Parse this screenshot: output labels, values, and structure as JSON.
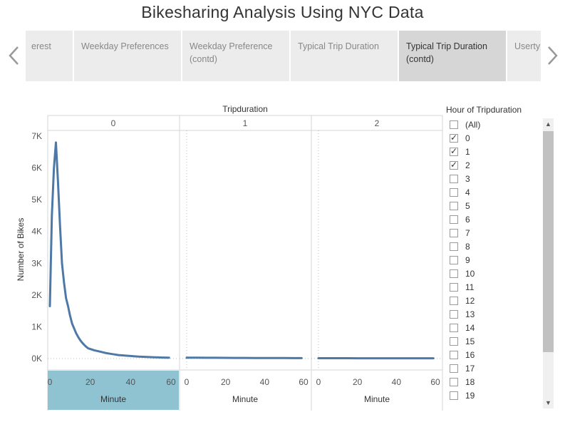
{
  "title": "Bikesharing Analysis Using NYC Data",
  "story_points": [
    {
      "label": "erest",
      "active": false
    },
    {
      "label": "Weekday Preferences",
      "active": false
    },
    {
      "label": "Weekday Preference (contd)",
      "active": false
    },
    {
      "label": "Typical Trip Duration",
      "active": false
    },
    {
      "label": "Typical Trip Duration (contd)",
      "active": true
    },
    {
      "label": "Userty",
      "active": false
    }
  ],
  "nav": {
    "prev_icon": "chevron-left-icon",
    "next_icon": "chevron-right-icon"
  },
  "filter": {
    "title": "Hour of Tripduration",
    "items": [
      {
        "label": "(All)",
        "checked": false
      },
      {
        "label": "0",
        "checked": true
      },
      {
        "label": "1",
        "checked": true
      },
      {
        "label": "2",
        "checked": true
      },
      {
        "label": "3",
        "checked": false
      },
      {
        "label": "4",
        "checked": false
      },
      {
        "label": "5",
        "checked": false
      },
      {
        "label": "6",
        "checked": false
      },
      {
        "label": "7",
        "checked": false
      },
      {
        "label": "8",
        "checked": false
      },
      {
        "label": "9",
        "checked": false
      },
      {
        "label": "10",
        "checked": false
      },
      {
        "label": "11",
        "checked": false
      },
      {
        "label": "12",
        "checked": false
      },
      {
        "label": "13",
        "checked": false
      },
      {
        "label": "14",
        "checked": false
      },
      {
        "label": "15",
        "checked": false
      },
      {
        "label": "16",
        "checked": false
      },
      {
        "label": "17",
        "checked": false
      },
      {
        "label": "18",
        "checked": false
      },
      {
        "label": "19",
        "checked": false
      }
    ]
  },
  "chart_data": {
    "type": "line",
    "facet_label": "Tripduration",
    "xlabel": "Minute",
    "ylabel": "Number of Bikes",
    "xlim": [
      0,
      60
    ],
    "ylim": [
      0,
      7000
    ],
    "x_ticks": [
      "0",
      "20",
      "40",
      "60"
    ],
    "y_ticks": [
      "0K",
      "1K",
      "2K",
      "3K",
      "4K",
      "5K",
      "6K",
      "7K"
    ],
    "y_tick_values": [
      0,
      1000,
      2000,
      3000,
      4000,
      5000,
      6000,
      7000
    ],
    "x_tick_values": [
      0,
      20,
      40,
      60
    ],
    "line_color": "#4e79a7",
    "highlight_color": "#8fc3d1",
    "facets": [
      {
        "label": "0",
        "x": [
          0,
          1,
          2,
          3,
          4,
          5,
          6,
          7,
          8,
          9,
          10,
          11,
          12,
          13,
          14,
          15,
          16,
          17,
          18,
          19,
          20,
          22,
          24,
          26,
          28,
          30,
          32,
          34,
          36,
          38,
          40,
          42,
          44,
          46,
          48,
          50,
          52,
          54,
          56,
          58,
          59
        ],
        "y": [
          1650,
          4500,
          6000,
          6800,
          5600,
          4200,
          3000,
          2400,
          1900,
          1650,
          1350,
          1100,
          950,
          800,
          680,
          580,
          500,
          430,
          370,
          320,
          300,
          260,
          230,
          200,
          170,
          150,
          130,
          110,
          100,
          90,
          80,
          70,
          60,
          55,
          50,
          45,
          40,
          35,
          32,
          30,
          28
        ]
      },
      {
        "label": "1",
        "x": [
          0,
          5,
          10,
          15,
          20,
          25,
          30,
          35,
          40,
          45,
          50,
          55,
          59
        ],
        "y": [
          30,
          28,
          25,
          24,
          22,
          20,
          20,
          18,
          17,
          16,
          15,
          14,
          14
        ]
      },
      {
        "label": "2",
        "x": [
          0,
          5,
          10,
          15,
          20,
          25,
          30,
          35,
          40,
          45,
          50,
          55,
          59
        ],
        "y": [
          12,
          12,
          11,
          11,
          10,
          10,
          10,
          10,
          9,
          9,
          9,
          9,
          9
        ]
      }
    ]
  }
}
